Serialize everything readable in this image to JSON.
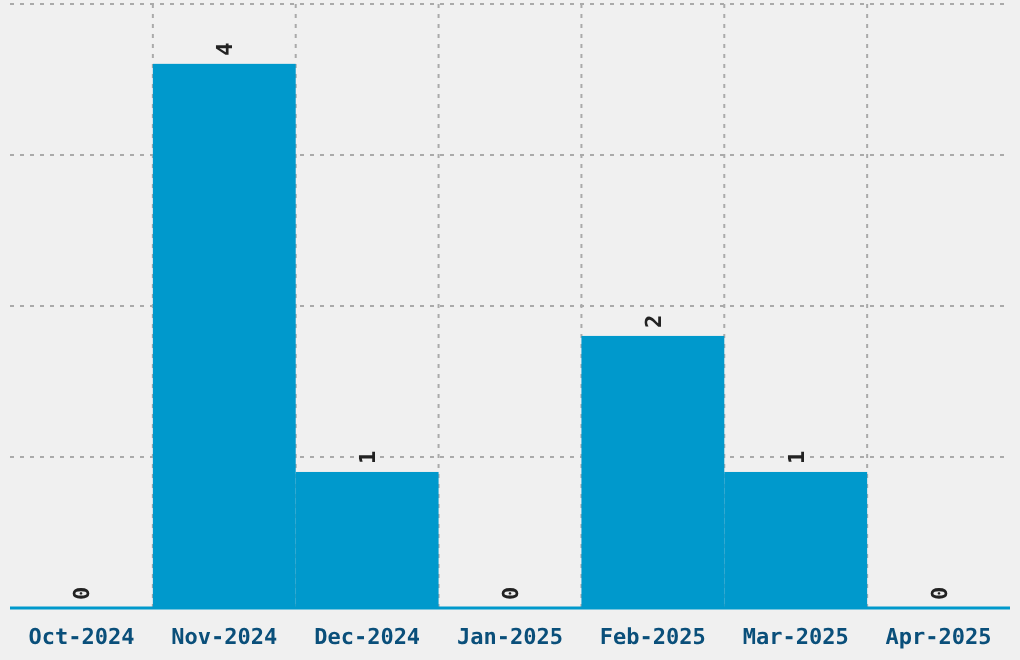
{
  "chart_data": {
    "type": "bar",
    "categories": [
      "Oct-2024",
      "Nov-2024",
      "Dec-2024",
      "Jan-2025",
      "Feb-2025",
      "Mar-2025",
      "Apr-2025"
    ],
    "values": [
      0,
      4,
      1,
      0,
      2,
      1,
      0
    ],
    "color": "#0099cc",
    "data_labels": true,
    "grid": true,
    "tick_labels": "x",
    "ylim": [
      0,
      4.44
    ],
    "yticks": [
      {
        "value": 0,
        "label": null
      },
      {
        "value": 1.11,
        "label": null
      },
      {
        "value": 2.22,
        "label": null
      },
      {
        "value": 3.33,
        "label": null
      },
      {
        "value": 4.44,
        "label": null
      }
    ]
  }
}
